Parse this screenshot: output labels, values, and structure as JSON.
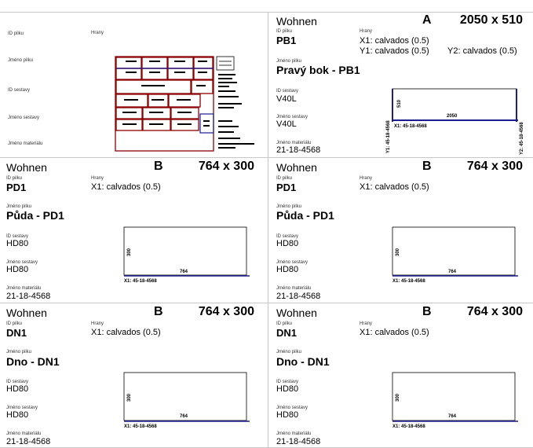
{
  "labels": {
    "id_part": "ID pilku",
    "edges": "Hrany",
    "part_name": "Jméno pilku",
    "id_assembly": "ID sestavy",
    "assembly_name": "Jméno sestavy",
    "material_name": "Jméno materiálu"
  },
  "cover": {
    "drawing_colors": {
      "frame": "#8b0000",
      "accent": "#1c1c8f"
    }
  },
  "labels_cards": [
    {
      "project": "Wohnen",
      "grade": "A",
      "dimensions": "2050 x 510",
      "part_id": "PB1",
      "part_name": "Pravý bok - PB1",
      "assembly_id": "V40L",
      "assembly_name": "V40L",
      "material": "21-18-4568",
      "edges": [
        "X1: calvados (0.5)",
        "Y1: calvados (0.5)",
        "Y2: calvados (0.5)"
      ],
      "drawing": {
        "width_label": "2050",
        "height_label": "510",
        "edge_x": "X1: 45-18-4568",
        "edge_y1": "Y1: 45-18-4568",
        "edge_y2": "Y2: 45-18-4568"
      }
    },
    {
      "project": "Wohnen",
      "grade": "B",
      "dimensions": "764 x 300",
      "part_id": "PD1",
      "part_name": "Půda - PD1",
      "assembly_id": "HD80",
      "assembly_name": "HD80",
      "material": "21-18-4568",
      "edges": [
        "X1: calvados (0.5)"
      ],
      "drawing": {
        "width_label": "764",
        "height_label": "300",
        "edge_x": "X1: 45-18-4568"
      }
    },
    {
      "project": "Wohnen",
      "grade": "B",
      "dimensions": "764 x 300",
      "part_id": "PD1",
      "part_name": "Půda - PD1",
      "assembly_id": "HD80",
      "assembly_name": "HD80",
      "material": "21-18-4568",
      "edges": [
        "X1: calvados (0.5)"
      ],
      "drawing": {
        "width_label": "764",
        "height_label": "300",
        "edge_x": "X1: 45-18-4568"
      }
    },
    {
      "project": "Wohnen",
      "grade": "B",
      "dimensions": "764 x 300",
      "part_id": "DN1",
      "part_name": "Dno - DN1",
      "assembly_id": "HD80",
      "assembly_name": "HD80",
      "material": "21-18-4568",
      "edges": [
        "X1: calvados (0.5)"
      ],
      "drawing": {
        "width_label": "764",
        "height_label": "300",
        "edge_x": "X1: 45-18-4568"
      }
    },
    {
      "project": "Wohnen",
      "grade": "B",
      "dimensions": "764 x 300",
      "part_id": "DN1",
      "part_name": "Dno - DN1",
      "assembly_id": "HD80",
      "assembly_name": "HD80",
      "material": "21-18-4568",
      "edges": [
        "X1: calvados (0.5)"
      ],
      "drawing": {
        "width_label": "764",
        "height_label": "300",
        "edge_x": "X1: 45-18-4568"
      }
    }
  ],
  "colors": {
    "edge_line": "#1c1c8f",
    "border": "#c8c8c8"
  }
}
